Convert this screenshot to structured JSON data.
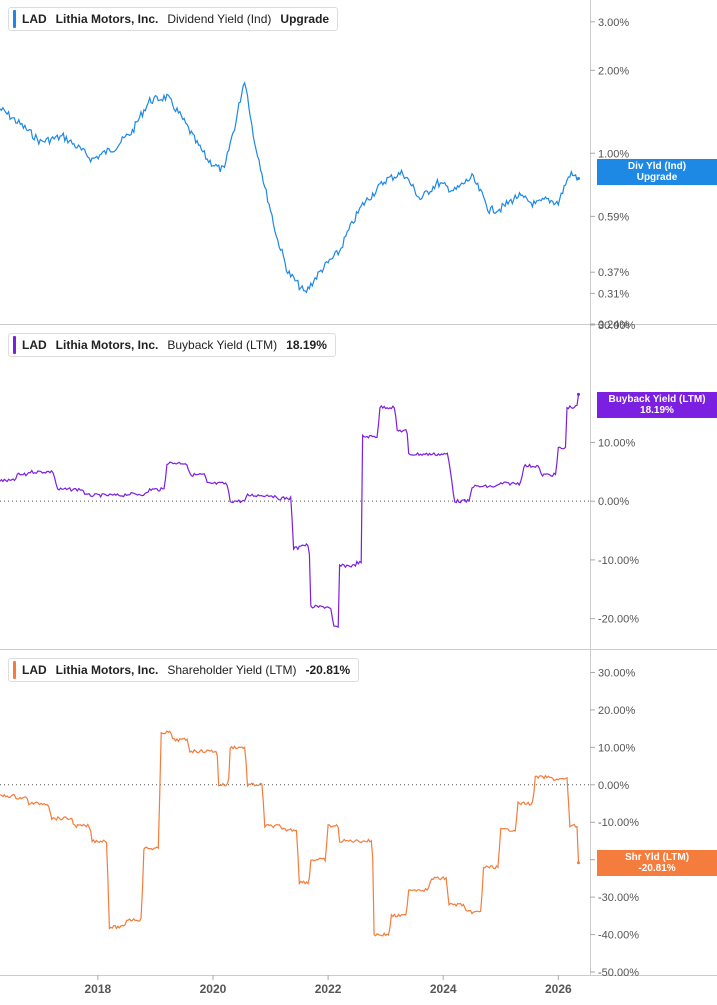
{
  "colors": {
    "dividend": "#1e88e5",
    "buyback": "#7b1fe0",
    "shareholder": "#f47c3c"
  },
  "chart_data": [
    {
      "type": "line",
      "legend": {
        "ticker": "LAD",
        "company": "Lithia Motors, Inc.",
        "metric": "Dividend Yield (Ind)",
        "value": "Upgrade"
      },
      "flag": {
        "line1": "Div Yld (Ind)",
        "line2": "Upgrade"
      },
      "y_scale": "log",
      "ylim": [
        0.24,
        3.6
      ],
      "y_ticks": [
        "3.00%",
        "2.00%",
        "1.00%",
        "0.59%",
        "0.37%",
        "0.31%",
        "0.24%"
      ],
      "y_tick_values": [
        3.0,
        2.0,
        1.0,
        0.59,
        0.37,
        0.31,
        0.24
      ],
      "x": [
        2016.3,
        2016.6,
        2017.0,
        2017.4,
        2017.9,
        2018.3,
        2018.6,
        2018.9,
        2019.2,
        2019.5,
        2019.7,
        2019.9,
        2020.1,
        2020.2,
        2020.4,
        2020.55,
        2020.7,
        2020.9,
        2021.1,
        2021.3,
        2021.6,
        2021.9,
        2022.2,
        2022.6,
        2022.8,
        2023.0,
        2023.3,
        2023.6,
        2023.9,
        2024.2,
        2024.5,
        2024.8,
        2025.0,
        2025.3,
        2025.6,
        2025.8,
        2026.0,
        2026.2,
        2026.35
      ],
      "y": [
        1.45,
        1.3,
        1.1,
        1.15,
        0.95,
        1.05,
        1.2,
        1.55,
        1.6,
        1.3,
        1.1,
        0.95,
        0.88,
        0.87,
        1.3,
        1.85,
        1.15,
        0.75,
        0.5,
        0.37,
        0.31,
        0.38,
        0.44,
        0.65,
        0.72,
        0.8,
        0.85,
        0.68,
        0.78,
        0.73,
        0.82,
        0.62,
        0.63,
        0.7,
        0.65,
        0.68,
        0.66,
        0.84,
        0.81
      ]
    },
    {
      "type": "line",
      "legend": {
        "ticker": "LAD",
        "company": "Lithia Motors, Inc.",
        "metric": "Buyback Yield (LTM)",
        "value": "18.19%"
      },
      "flag": {
        "line1": "Buyback Yield (LTM)",
        "line2": "18.19%"
      },
      "ylim": [
        -25,
        30
      ],
      "y_ticks": [
        "30.00%",
        "10.00%",
        "0.00%",
        "-10.00%",
        "-20.00%"
      ],
      "y_tick_values": [
        30,
        10,
        0,
        -10,
        -20
      ],
      "step": true,
      "x": [
        2016.3,
        2016.6,
        2016.8,
        2017.3,
        2017.8,
        2018.1,
        2018.5,
        2018.9,
        2019.2,
        2019.6,
        2019.9,
        2020.3,
        2020.6,
        2021.1,
        2021.4,
        2021.5,
        2021.7,
        2022.1,
        2022.2,
        2022.5,
        2022.6,
        2022.9,
        2023.2,
        2023.4,
        2024.2,
        2024.5,
        2025.0,
        2025.4,
        2025.7,
        2026.0,
        2026.15,
        2026.35
      ],
      "y": [
        3.5,
        4.5,
        5.0,
        2.0,
        1.0,
        1.0,
        1.2,
        2.0,
        6.5,
        4.5,
        3.0,
        0.0,
        1.0,
        0.5,
        -8.0,
        -7.5,
        -18.0,
        -21.5,
        -11.0,
        -10.5,
        11.0,
        16.0,
        12.0,
        8.0,
        0.0,
        2.5,
        3.0,
        6.0,
        4.5,
        9.0,
        16.0,
        18.19
      ]
    },
    {
      "type": "line",
      "legend": {
        "ticker": "LAD",
        "company": "Lithia Motors, Inc.",
        "metric": "Shareholder Yield (LTM)",
        "value": "-20.81%"
      },
      "flag": {
        "line1": "Shr Yld (LTM)",
        "line2": "-20.81%"
      },
      "ylim": [
        -50,
        36
      ],
      "y_ticks": [
        "30.00%",
        "20.00%",
        "10.00%",
        "0.00%",
        "-10.00%",
        "-20.00%",
        "-30.00%",
        "-40.00%",
        "-50.00%"
      ],
      "y_tick_values": [
        30,
        20,
        10,
        0,
        -10,
        -20,
        -30,
        -40,
        -50
      ],
      "step": true,
      "x": [
        2016.3,
        2016.6,
        2016.8,
        2017.2,
        2017.6,
        2017.9,
        2018.2,
        2018.5,
        2018.8,
        2019.1,
        2019.3,
        2019.6,
        2019.9,
        2020.1,
        2020.3,
        2020.6,
        2020.9,
        2021.2,
        2021.5,
        2021.7,
        2022.0,
        2022.2,
        2022.6,
        2022.8,
        2023.1,
        2023.4,
        2023.8,
        2024.1,
        2024.4,
        2024.7,
        2025.0,
        2025.3,
        2025.6,
        2025.9,
        2026.2,
        2026.35
      ],
      "y": [
        -3.0,
        -3.5,
        -5.0,
        -9.0,
        -11.0,
        -15.0,
        -38.0,
        -36.0,
        -17.0,
        14.0,
        12.0,
        9.0,
        9.0,
        0.0,
        10.0,
        0.0,
        -11.0,
        -12.0,
        -26.0,
        -20.0,
        -11.0,
        -15.0,
        -15.0,
        -40.0,
        -35.0,
        -28.0,
        -25.0,
        -32.0,
        -34.0,
        -22.0,
        -12.0,
        -5.0,
        2.0,
        1.5,
        -11.0,
        -20.81
      ]
    }
  ],
  "x_axis": {
    "ticks": [
      "2018",
      "2020",
      "2022",
      "2024",
      "2026"
    ],
    "tick_values": [
      2018,
      2020,
      2022,
      2024,
      2026
    ],
    "xlim": [
      2016.3,
      2026.55
    ]
  }
}
